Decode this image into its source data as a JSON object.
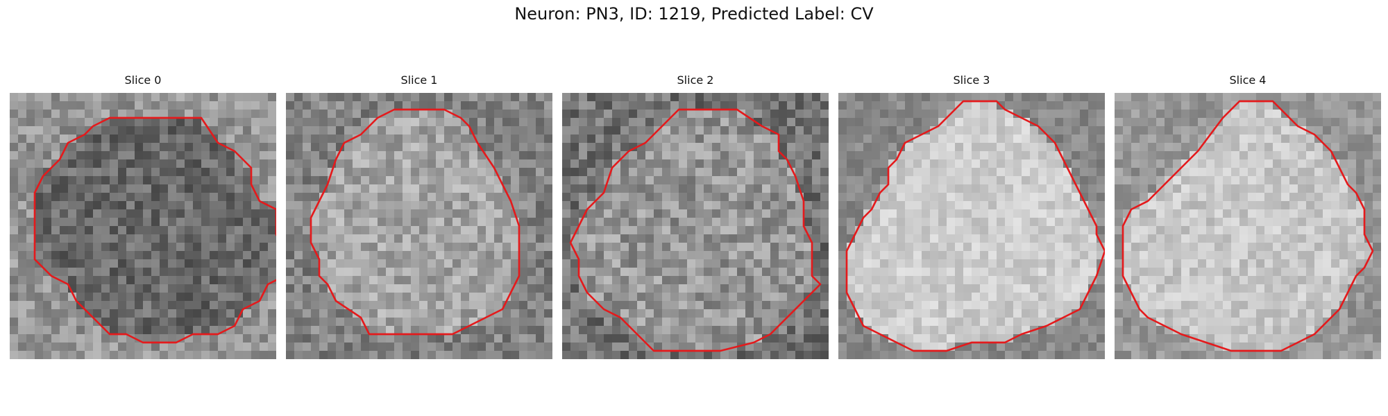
{
  "figure": {
    "title": "Neuron: PN3, ID: 1219, Predicted Label: CV"
  },
  "grid_size": 32,
  "contour_color": "#e41a1c",
  "panels": [
    {
      "title": "Slice 0",
      "image_description": "noisy grayscale micrograph of a neuron soma, darker interior",
      "contour_vertices": [
        [
          18,
          3
        ],
        [
          23,
          3
        ],
        [
          25,
          6
        ],
        [
          27,
          7
        ],
        [
          29,
          9
        ],
        [
          29,
          11
        ],
        [
          30,
          13
        ],
        [
          32,
          14
        ],
        [
          32,
          17
        ],
        [
          33,
          19
        ],
        [
          33,
          21
        ],
        [
          33,
          22
        ],
        [
          31,
          23
        ],
        [
          30,
          25
        ],
        [
          28,
          26
        ],
        [
          27,
          28
        ],
        [
          25,
          29
        ],
        [
          22,
          29
        ],
        [
          20,
          30
        ],
        [
          16,
          30
        ],
        [
          14,
          29
        ],
        [
          12,
          29
        ],
        [
          10,
          27
        ],
        [
          8,
          25
        ],
        [
          7,
          23
        ],
        [
          5,
          22
        ],
        [
          3,
          20
        ],
        [
          3,
          18
        ],
        [
          3,
          17
        ],
        [
          3,
          15
        ],
        [
          3,
          12
        ],
        [
          4,
          10
        ],
        [
          6,
          8
        ],
        [
          7,
          6
        ],
        [
          9,
          5
        ],
        [
          10,
          4
        ],
        [
          12,
          3
        ]
      ]
    },
    {
      "title": "Slice 1",
      "image_description": "noisy grayscale micrograph, bright round soma center",
      "contour_vertices": [
        [
          19,
          2
        ],
        [
          16,
          2
        ],
        [
          14,
          2
        ],
        [
          13,
          2
        ],
        [
          11,
          3
        ],
        [
          9,
          5
        ],
        [
          7,
          6
        ],
        [
          6,
          8
        ],
        [
          5,
          11
        ],
        [
          4,
          13
        ],
        [
          3,
          15
        ],
        [
          3,
          18
        ],
        [
          4,
          20
        ],
        [
          4,
          22
        ],
        [
          5,
          23
        ],
        [
          6,
          25
        ],
        [
          9,
          27
        ],
        [
          10,
          29
        ],
        [
          16,
          29
        ],
        [
          20,
          29
        ],
        [
          22,
          28
        ],
        [
          24,
          27
        ],
        [
          26,
          26
        ],
        [
          27,
          24
        ],
        [
          28,
          22
        ],
        [
          28,
          19
        ],
        [
          28,
          16
        ],
        [
          27,
          13
        ],
        [
          26,
          11
        ],
        [
          25,
          9
        ],
        [
          23,
          6
        ],
        [
          22,
          4
        ],
        [
          21,
          3
        ]
      ]
    },
    {
      "title": "Slice 2",
      "image_description": "noisy grayscale micrograph with bright soma",
      "contour_vertices": [
        [
          14,
          2
        ],
        [
          21,
          2
        ],
        [
          24,
          4
        ],
        [
          26,
          5
        ],
        [
          26,
          7
        ],
        [
          27,
          8
        ],
        [
          28,
          10
        ],
        [
          29,
          13
        ],
        [
          29,
          16
        ],
        [
          30,
          18
        ],
        [
          30,
          20
        ],
        [
          30,
          22
        ],
        [
          31,
          23
        ],
        [
          29,
          25
        ],
        [
          27,
          27
        ],
        [
          25,
          29
        ],
        [
          23,
          30
        ],
        [
          19,
          31
        ],
        [
          14,
          31
        ],
        [
          11,
          31
        ],
        [
          10,
          30
        ],
        [
          8,
          28
        ],
        [
          7,
          27
        ],
        [
          5,
          26
        ],
        [
          3,
          24
        ],
        [
          2,
          22
        ],
        [
          2,
          20
        ],
        [
          1,
          18
        ],
        [
          2,
          16
        ],
        [
          3,
          14
        ],
        [
          4,
          13
        ],
        [
          5,
          12
        ],
        [
          6,
          9
        ],
        [
          7,
          8
        ],
        [
          8,
          7
        ],
        [
          10,
          6
        ],
        [
          11,
          5
        ],
        [
          12,
          4
        ]
      ]
    },
    {
      "title": "Slice 3",
      "image_description": "grayscale micrograph of large bright soma with dark membrane boundary",
      "contour_vertices": [
        [
          15,
          1
        ],
        [
          19,
          1
        ],
        [
          20,
          2
        ],
        [
          22,
          3
        ],
        [
          24,
          4
        ],
        [
          26,
          6
        ],
        [
          27,
          8
        ],
        [
          28,
          10
        ],
        [
          29,
          12
        ],
        [
          30,
          14
        ],
        [
          31,
          16
        ],
        [
          31,
          17
        ],
        [
          32,
          19
        ],
        [
          31,
          22
        ],
        [
          30,
          24
        ],
        [
          29,
          26
        ],
        [
          27,
          27
        ],
        [
          25,
          28
        ],
        [
          22,
          29
        ],
        [
          20,
          30
        ],
        [
          16,
          30
        ],
        [
          13,
          31
        ],
        [
          9,
          31
        ],
        [
          7,
          30
        ],
        [
          5,
          29
        ],
        [
          3,
          28
        ],
        [
          2,
          26
        ],
        [
          1,
          24
        ],
        [
          1,
          22
        ],
        [
          1,
          19
        ],
        [
          2,
          17
        ],
        [
          3,
          15
        ],
        [
          4,
          14
        ],
        [
          5,
          12
        ],
        [
          6,
          11
        ],
        [
          6,
          9
        ],
        [
          7,
          8
        ],
        [
          8,
          6
        ],
        [
          10,
          5
        ],
        [
          12,
          4
        ],
        [
          13,
          3
        ],
        [
          14,
          2
        ]
      ]
    },
    {
      "title": "Slice 4",
      "image_description": "grayscale micrograph of bright soma with dark boundary at upper-left",
      "contour_vertices": [
        [
          10,
          7
        ],
        [
          13,
          3
        ],
        [
          15,
          1
        ],
        [
          19,
          1
        ],
        [
          21,
          3
        ],
        [
          22,
          4
        ],
        [
          24,
          5
        ],
        [
          25,
          6
        ],
        [
          26,
          7
        ],
        [
          27,
          9
        ],
        [
          28,
          11
        ],
        [
          29,
          12
        ],
        [
          30,
          14
        ],
        [
          30,
          17
        ],
        [
          31,
          19
        ],
        [
          30,
          21
        ],
        [
          29,
          22
        ],
        [
          28,
          24
        ],
        [
          27,
          26
        ],
        [
          26,
          27
        ],
        [
          24,
          29
        ],
        [
          22,
          30
        ],
        [
          20,
          31
        ],
        [
          17,
          31
        ],
        [
          14,
          31
        ],
        [
          11,
          30
        ],
        [
          8,
          29
        ],
        [
          6,
          28
        ],
        [
          4,
          27
        ],
        [
          3,
          26
        ],
        [
          2,
          24
        ],
        [
          1,
          22
        ],
        [
          1,
          19
        ],
        [
          1,
          16
        ],
        [
          2,
          14
        ],
        [
          4,
          13
        ],
        [
          5,
          12
        ],
        [
          7,
          10
        ],
        [
          8,
          9
        ]
      ]
    }
  ]
}
